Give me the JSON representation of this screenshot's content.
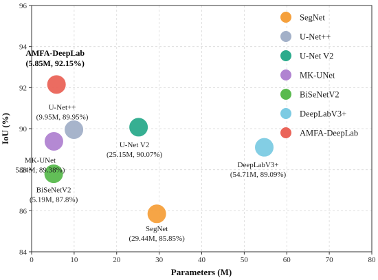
{
  "chart_data": {
    "type": "scatter",
    "xlabel": "Parameters (M)",
    "ylabel": "IoU (%)",
    "xlim": [
      0,
      80
    ],
    "ylim": [
      84,
      96
    ],
    "xticks": [
      "0",
      "10",
      "20",
      "30",
      "40",
      "50",
      "60",
      "70",
      "80"
    ],
    "yticks": [
      "84",
      "86",
      "88",
      "90",
      "92",
      "94",
      "96"
    ],
    "grid": true,
    "legend_position": "top-right",
    "series": [
      {
        "name": "SegNet",
        "x": 29.44,
        "y": 85.85,
        "color": "#f5a03c",
        "label_line1": "SegNet",
        "label_line2": "(29.44M, 85.85%)",
        "bold": false
      },
      {
        "name": "U-Net++",
        "x": 9.95,
        "y": 89.95,
        "color": "#a2b0c8",
        "label_line1": "U-Net++",
        "label_line2": "(9.95M, 89.95%)",
        "bold": false
      },
      {
        "name": "U-Net V2",
        "x": 25.15,
        "y": 90.07,
        "color": "#2bab8c",
        "label_line1": "U-Net V2",
        "label_line2": "(25.15M, 90.07%)",
        "bold": false
      },
      {
        "name": "MK-UNet",
        "x": 5.24,
        "y": 89.38,
        "color": "#b083d1",
        "label_line1": "MK-UNet",
        "label_line2": "5.24M, 89.38%)",
        "bold": false
      },
      {
        "name": "BiSeNetV2",
        "x": 5.19,
        "y": 87.8,
        "color": "#5aba4e",
        "label_line1": "BiSeNetV2",
        "label_line2": "(5.19M, 87.8%)",
        "bold": false
      },
      {
        "name": "DeepLabV3+",
        "x": 54.71,
        "y": 89.09,
        "color": "#7ccbe3",
        "label_line1": "DeepLabV3+",
        "label_line2": "(54.71M, 89.09%)",
        "bold": false
      },
      {
        "name": "AMFA-DeepLab",
        "x": 5.85,
        "y": 92.15,
        "color": "#ea6459",
        "label_line1": "AMFA-DeepLab",
        "label_line2": "(5.85M, 92.15%)",
        "bold": true
      }
    ]
  }
}
